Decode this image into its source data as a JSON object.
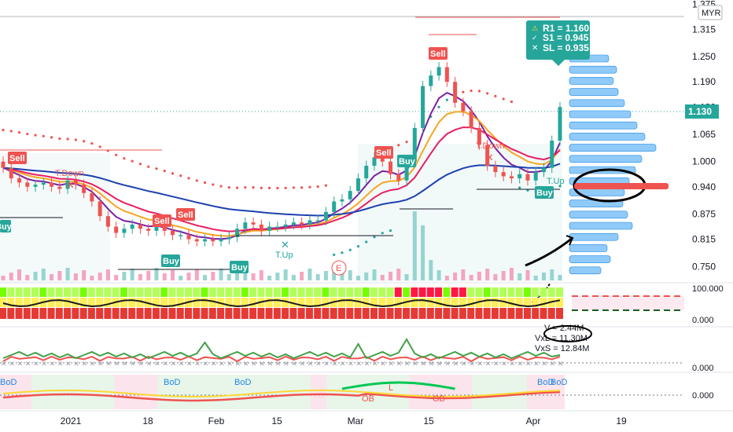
{
  "currency": "MYR",
  "price_axis": {
    "ticks": [
      "1.375",
      "1.315",
      "1.250",
      "1.190",
      "1.130",
      "1.065",
      "1.000",
      "0.940",
      "0.875",
      "0.815",
      "0.750"
    ],
    "current_price": "1.130"
  },
  "time_axis": {
    "ticks": [
      "2021",
      "18",
      "Feb",
      "15",
      "Mar",
      "15",
      "Apr",
      "19"
    ]
  },
  "info_box": {
    "r1": "R1 = 1.160",
    "s1": "S1 = 0.945",
    "sl": "SL = 0.935"
  },
  "signals": {
    "sell": "Sell",
    "buy": "Buy",
    "tdown": "T.Down",
    "tup": "T.Up",
    "earnings": "E"
  },
  "osc1": {
    "ticks": [
      "100.000",
      "0.000"
    ]
  },
  "osc2": {
    "ticks": [
      "0.000"
    ],
    "v_lines": [
      "V = 2.44M",
      "VxL = 11.30M",
      "VxS = 12.84M"
    ]
  },
  "osc3": {
    "ticks": [
      "0.000"
    ],
    "labels": {
      "bod": "BoD",
      "ob": "OB",
      "l": "L"
    }
  },
  "colors": {
    "up": "#26a69a",
    "down": "#ef5350",
    "ema_fast": "#7b1fa2",
    "ema_mid": "#f5a623",
    "ema_slow": "#e91e63",
    "ma_long": "#1e40af",
    "profile": "#90caf9"
  },
  "chart_data": {
    "type": "candlestick",
    "x": [
      "2020-12-24",
      "2020-12-28",
      "2020-12-29",
      "2020-12-30",
      "2020-12-31",
      "2021-01-04",
      "2021-01-05",
      "2021-01-06",
      "2021-01-07",
      "2021-01-08",
      "2021-01-11",
      "2021-01-12",
      "2021-01-13",
      "2021-01-14",
      "2021-01-15",
      "2021-01-18",
      "2021-01-19",
      "2021-01-20",
      "2021-01-21",
      "2021-01-22",
      "2021-01-25",
      "2021-01-26",
      "2021-01-27",
      "2021-01-29",
      "2021-02-01",
      "2021-02-02",
      "2021-02-03",
      "2021-02-04",
      "2021-02-05",
      "2021-02-08",
      "2021-02-09",
      "2021-02-10",
      "2021-02-11",
      "2021-02-15",
      "2021-02-16",
      "2021-02-17",
      "2021-02-18",
      "2021-02-19",
      "2021-02-22",
      "2021-02-23",
      "2021-02-24",
      "2021-02-25",
      "2021-02-26",
      "2021-03-01",
      "2021-03-02",
      "2021-03-03",
      "2021-03-04",
      "2021-03-05",
      "2021-03-08",
      "2021-03-09",
      "2021-03-10",
      "2021-03-11",
      "2021-03-12",
      "2021-03-15",
      "2021-03-16",
      "2021-03-17",
      "2021-03-18",
      "2021-03-19",
      "2021-03-22",
      "2021-03-23",
      "2021-03-24",
      "2021-03-25",
      "2021-03-26",
      "2021-03-29",
      "2021-03-30",
      "2021-03-31",
      "2021-04-01",
      "2021-04-02",
      "2021-04-05",
      "2021-04-06"
    ],
    "close": [
      0.985,
      0.96,
      0.95,
      0.94,
      0.945,
      0.95,
      0.94,
      0.935,
      0.955,
      0.945,
      0.925,
      0.905,
      0.87,
      0.845,
      0.83,
      0.84,
      0.85,
      0.84,
      0.835,
      0.85,
      0.835,
      0.825,
      0.825,
      0.815,
      0.81,
      0.815,
      0.81,
      0.815,
      0.82,
      0.84,
      0.855,
      0.85,
      0.835,
      0.845,
      0.845,
      0.85,
      0.855,
      0.85,
      0.86,
      0.86,
      0.88,
      0.905,
      0.91,
      0.93,
      0.96,
      0.99,
      1.01,
      1.0,
      0.97,
      0.955,
      1.0,
      1.08,
      1.18,
      1.205,
      1.225,
      1.19,
      1.14,
      1.12,
      1.08,
      1.04,
      0.99,
      0.975,
      0.965,
      0.96,
      0.97,
      0.955,
      0.975,
      0.985,
      1.05,
      1.13
    ],
    "open": [
      1.0,
      0.985,
      0.96,
      0.95,
      0.94,
      0.945,
      0.95,
      0.94,
      0.935,
      0.955,
      0.945,
      0.925,
      0.905,
      0.87,
      0.845,
      0.83,
      0.84,
      0.85,
      0.84,
      0.835,
      0.85,
      0.835,
      0.825,
      0.825,
      0.815,
      0.81,
      0.815,
      0.81,
      0.815,
      0.82,
      0.84,
      0.855,
      0.85,
      0.835,
      0.845,
      0.845,
      0.85,
      0.855,
      0.85,
      0.86,
      0.86,
      0.88,
      0.905,
      0.91,
      0.93,
      0.96,
      0.99,
      1.01,
      1.0,
      0.97,
      0.955,
      1.0,
      1.08,
      1.18,
      1.205,
      1.225,
      1.19,
      1.14,
      1.12,
      1.08,
      1.04,
      0.99,
      0.975,
      0.965,
      0.96,
      0.97,
      0.955,
      0.975,
      0.985,
      1.05
    ],
    "price_range": [
      0.715,
      1.385
    ],
    "r1": 1.16,
    "s1": 0.945,
    "sl": 0.935
  }
}
